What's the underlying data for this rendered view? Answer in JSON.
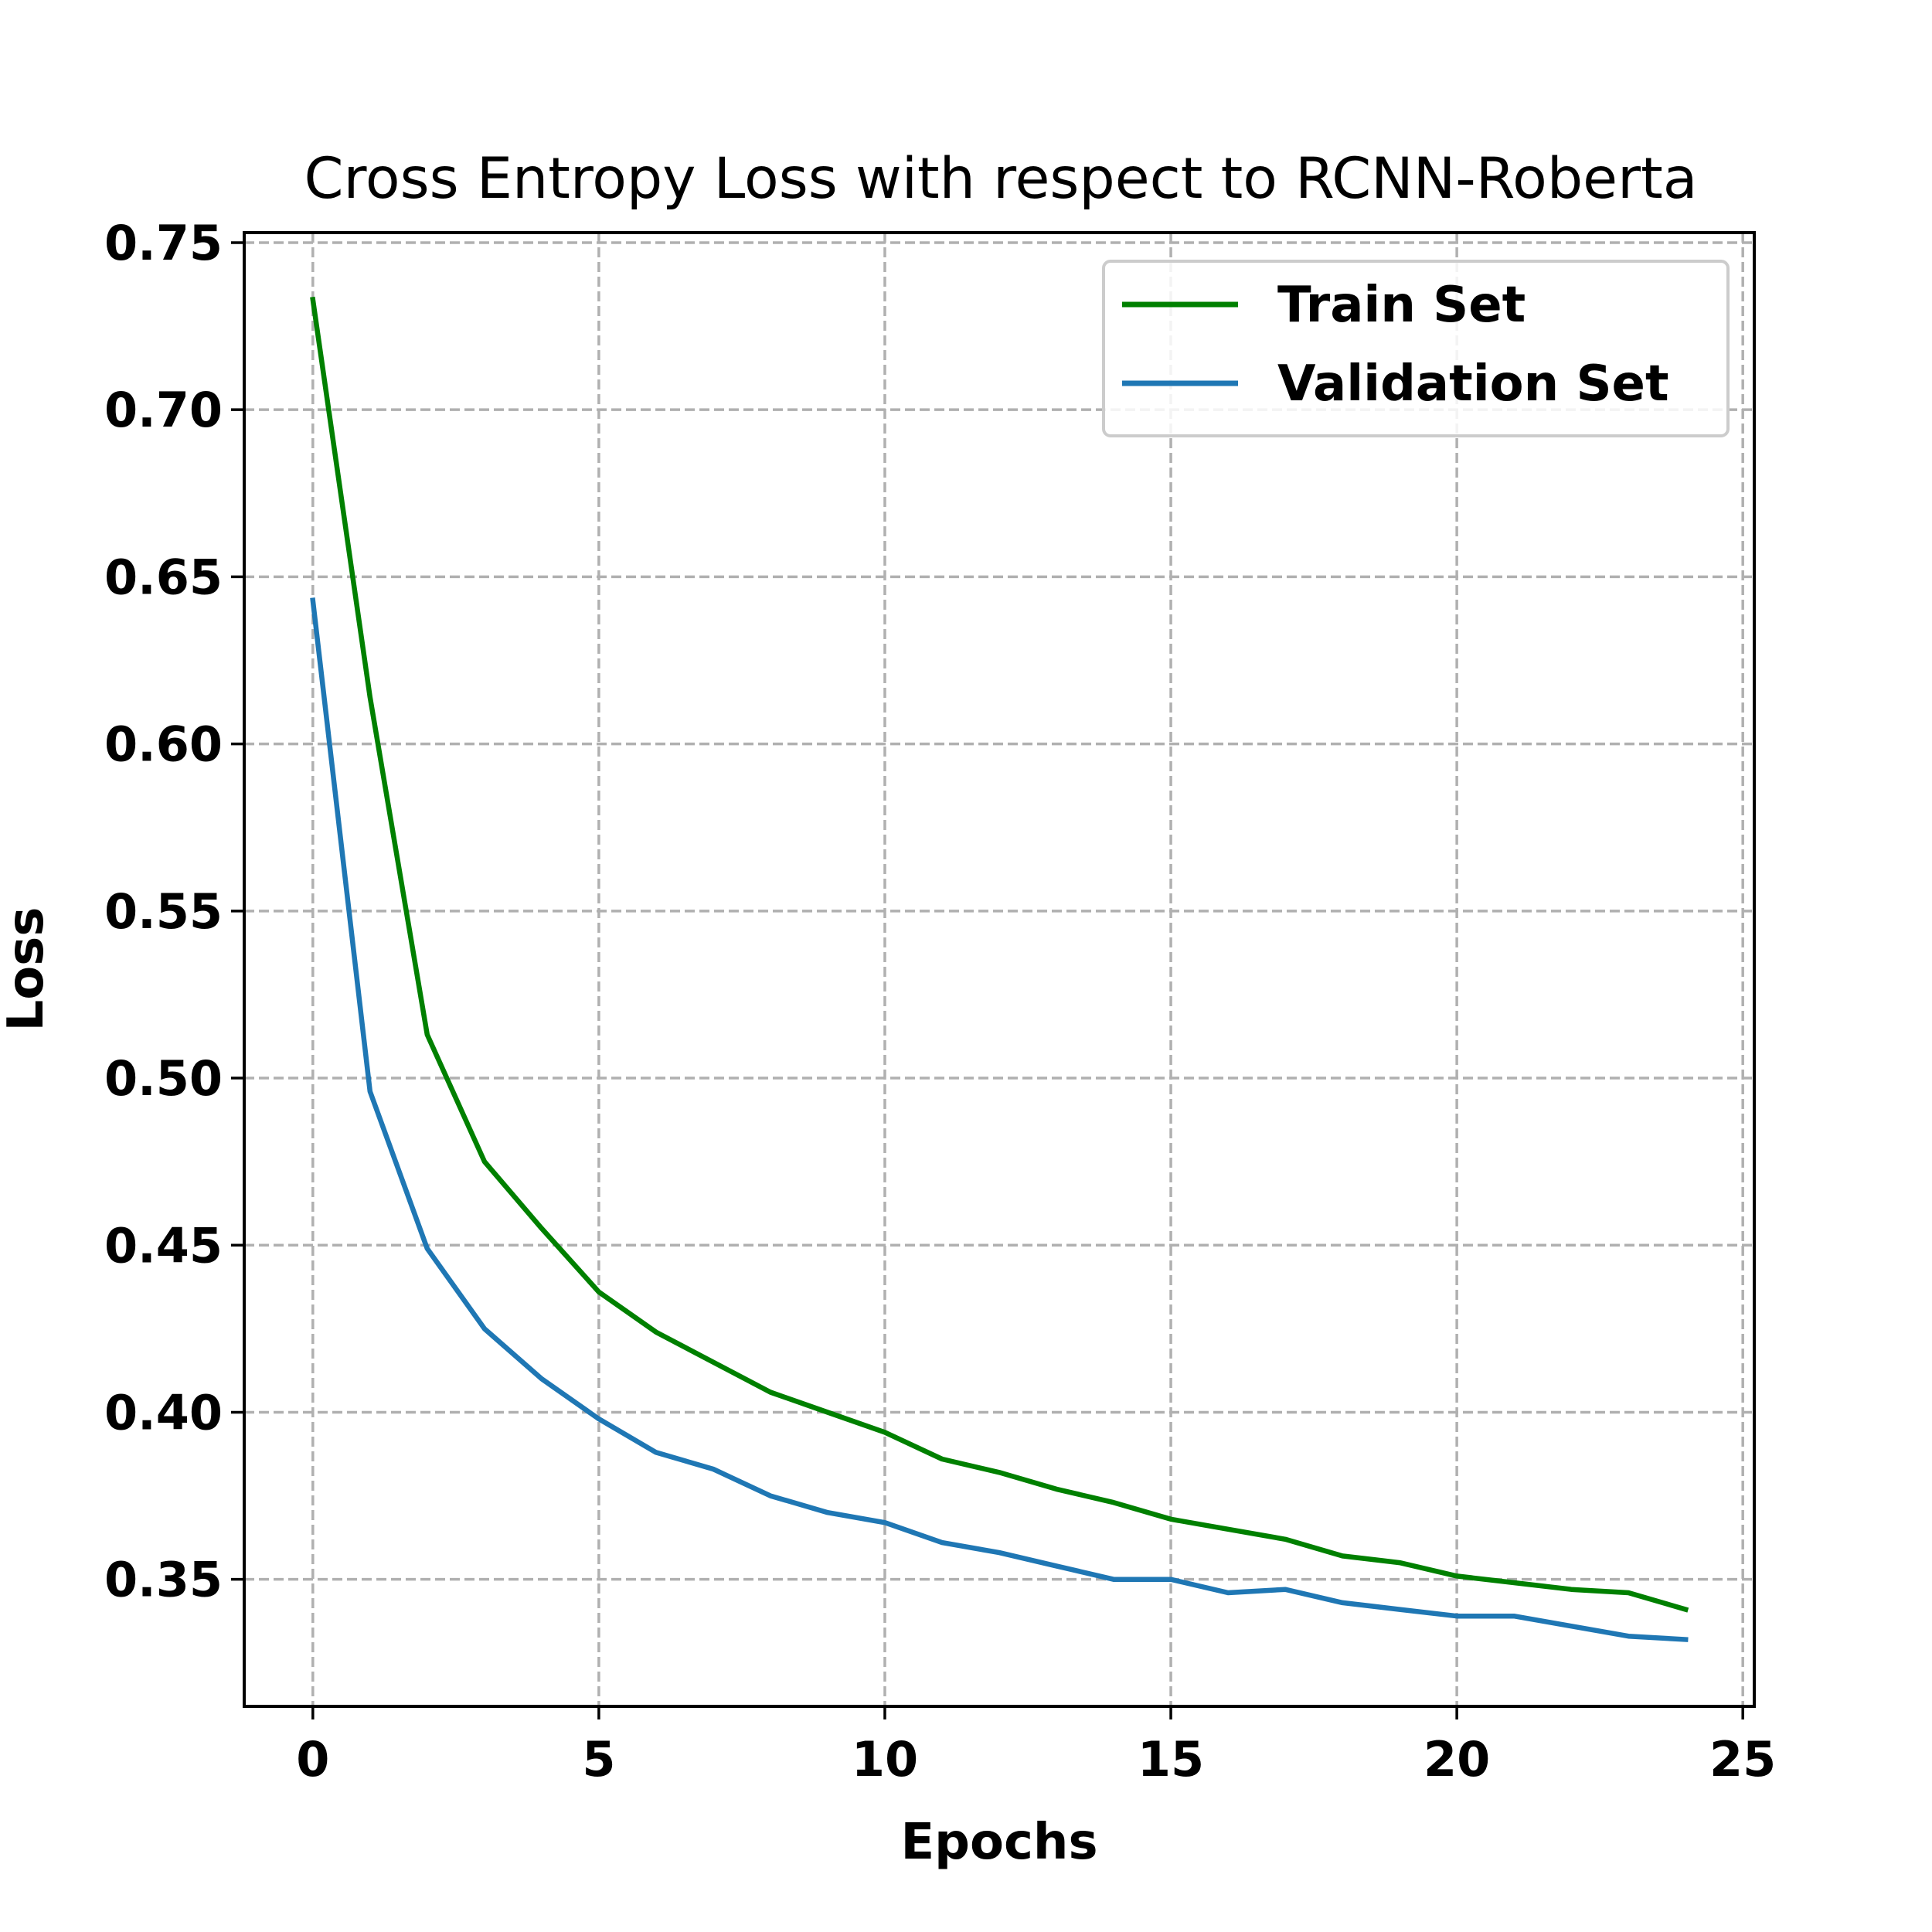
{
  "chart_data": {
    "type": "line",
    "title": "Cross Entropy Loss with respect to RCNN-Roberta",
    "xlabel": "Epochs",
    "ylabel": "Loss",
    "xlim": [
      -1.2,
      25.2
    ],
    "ylim": [
      0.312,
      0.753
    ],
    "xticks": [
      0,
      5,
      10,
      15,
      20,
      25
    ],
    "xtick_labels": [
      "0",
      "5",
      "10",
      "15",
      "20",
      "25"
    ],
    "yticks": [
      0.35,
      0.4,
      0.45,
      0.5,
      0.55,
      0.6,
      0.65,
      0.7,
      0.75
    ],
    "ytick_labels": [
      "0.35",
      "0.40",
      "0.45",
      "0.50",
      "0.55",
      "0.60",
      "0.65",
      "0.70",
      "0.75"
    ],
    "grid": true,
    "legend_position": "top-right",
    "x": [
      0,
      1,
      2,
      3,
      4,
      5,
      6,
      7,
      8,
      9,
      10,
      11,
      12,
      13,
      14,
      15,
      16,
      17,
      18,
      19,
      20,
      21,
      22,
      23,
      24
    ],
    "series": [
      {
        "name": "Train Set",
        "color": "#008000",
        "values": [
          0.733,
          0.614,
          0.513,
          0.475,
          0.455,
          0.436,
          0.424,
          0.415,
          0.406,
          0.4,
          0.394,
          0.386,
          0.382,
          0.377,
          0.373,
          0.368,
          0.365,
          0.362,
          0.357,
          0.355,
          0.351,
          0.349,
          0.347,
          0.346,
          0.341
        ]
      },
      {
        "name": "Validation Set",
        "color": "#1f77b4",
        "values": [
          0.643,
          0.496,
          0.449,
          0.425,
          0.41,
          0.398,
          0.388,
          0.383,
          0.375,
          0.37,
          0.367,
          0.361,
          0.358,
          0.354,
          0.35,
          0.35,
          0.346,
          0.347,
          0.343,
          0.341,
          0.339,
          0.339,
          0.336,
          0.333,
          0.332
        ]
      }
    ]
  }
}
